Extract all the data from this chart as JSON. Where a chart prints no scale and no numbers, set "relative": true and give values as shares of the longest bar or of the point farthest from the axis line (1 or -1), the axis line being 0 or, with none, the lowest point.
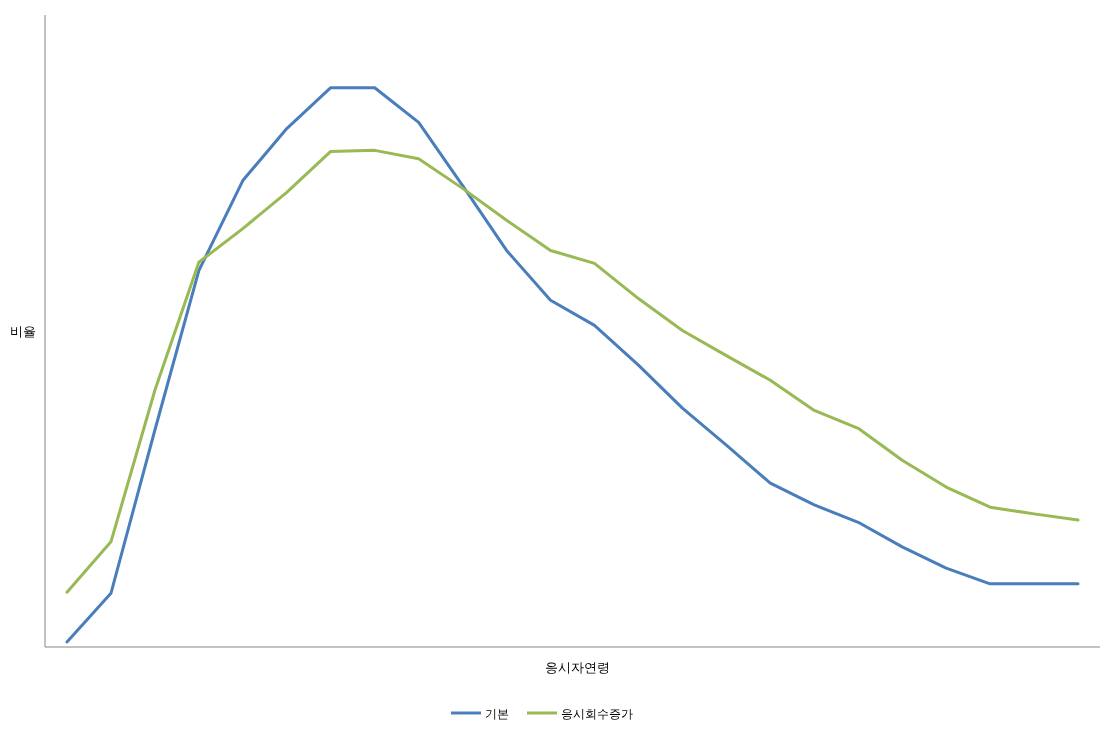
{
  "chart_data": {
    "type": "line",
    "relative": true,
    "xlabel": "응시자연령",
    "ylabel": "비율",
    "legend": "bottom",
    "marker": "none",
    "line_style": "solid",
    "categories": [
      null,
      null,
      null,
      null,
      null,
      null,
      null,
      null,
      null,
      null,
      null,
      null,
      null,
      null,
      null,
      null,
      null,
      null,
      null,
      null,
      null,
      null,
      null,
      null
    ],
    "series": [
      {
        "name": "기본",
        "color": "#4a7ebb",
        "values": [
          0.009,
          0.096,
          0.388,
          0.673,
          0.834,
          0.927,
          1,
          1,
          0.938,
          0.825,
          0.709,
          0.62,
          0.575,
          0.504,
          0.427,
          0.361,
          0.293,
          0.254,
          0.223,
          0.179,
          0.141,
          0.113,
          0.113,
          0.113
        ]
      },
      {
        "name": "응시회수증가",
        "color": "#98b954",
        "values": [
          0.098,
          0.188,
          0.459,
          0.688,
          0.748,
          0.813,
          0.886,
          0.888,
          0.873,
          0.82,
          0.763,
          0.709,
          0.686,
          0.623,
          0.566,
          0.521,
          0.477,
          0.423,
          0.391,
          0.334,
          0.286,
          0.25,
          0.238,
          0.227
        ]
      }
    ]
  }
}
